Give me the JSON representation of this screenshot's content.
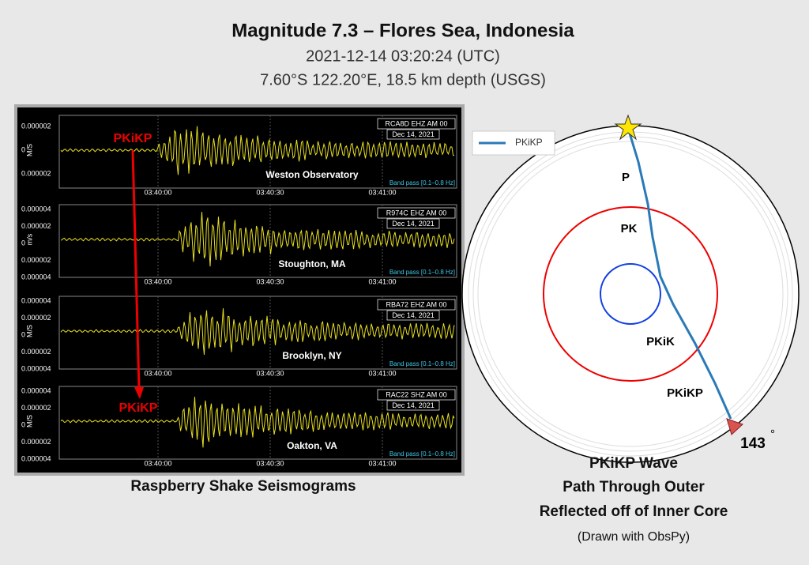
{
  "header": {
    "title": "Magnitude 7.3 – Flores Sea, Indonesia",
    "date": "2021-12-14 03:20:24 (UTC)",
    "location": "7.60°S 122.20°E, 18.5 km depth (USGS)"
  },
  "seismograms": {
    "caption": "Raspberry Shake Seismograms",
    "arrival_label_top": "PKiKP",
    "arrival_label_bottom": "PKiKP",
    "xticks": [
      "03:40:00",
      "03:40:30",
      "03:41:00"
    ],
    "panels": [
      {
        "station": "RCA8D EHZ AM 00",
        "date": "Dec 14, 2021",
        "filter": "Band pass [0.1–0.8 Hz]",
        "place": "Weston Observatory",
        "unit": "M/S",
        "yticks": [
          "0.000002",
          "0",
          "0.000002"
        ]
      },
      {
        "station": "R974C EHZ AM 00",
        "date": "Dec 14, 2021",
        "filter": "Band pass [0.1–0.8 Hz]",
        "place": "Stoughton, MA",
        "unit": "m/s",
        "yticks": [
          "0.000004",
          "0.000002",
          "0",
          "0.000002",
          "0.000004"
        ]
      },
      {
        "station": "RBA72 EHZ AM 00",
        "date": "Dec 14, 2021",
        "filter": "Band pass [0.1–0.8 Hz]",
        "place": "Brooklyn, NY",
        "unit": "M/S",
        "yticks": [
          "0.000004",
          "0.000002",
          "0",
          "0.000002",
          "0.000004"
        ]
      },
      {
        "station": "RAC22 SHZ AM 00",
        "date": "Dec 14, 2021",
        "filter": "Band pass [0.1–0.8 Hz]",
        "place": "Oakton, VA",
        "unit": "M/S",
        "yticks": [
          "0.000004",
          "0.000002",
          "0",
          "0.000002",
          "0.000004"
        ]
      }
    ]
  },
  "diagram": {
    "legend": "PKiKP",
    "labels": [
      "P",
      "PK",
      "PKiK",
      "PKiKP"
    ],
    "distance": "143",
    "degree": "°",
    "caption": [
      "PKiKP Wave",
      "Path Through Outer",
      "Reflected off of Inner Core"
    ],
    "credit": "(Drawn with ObsPy)"
  }
}
